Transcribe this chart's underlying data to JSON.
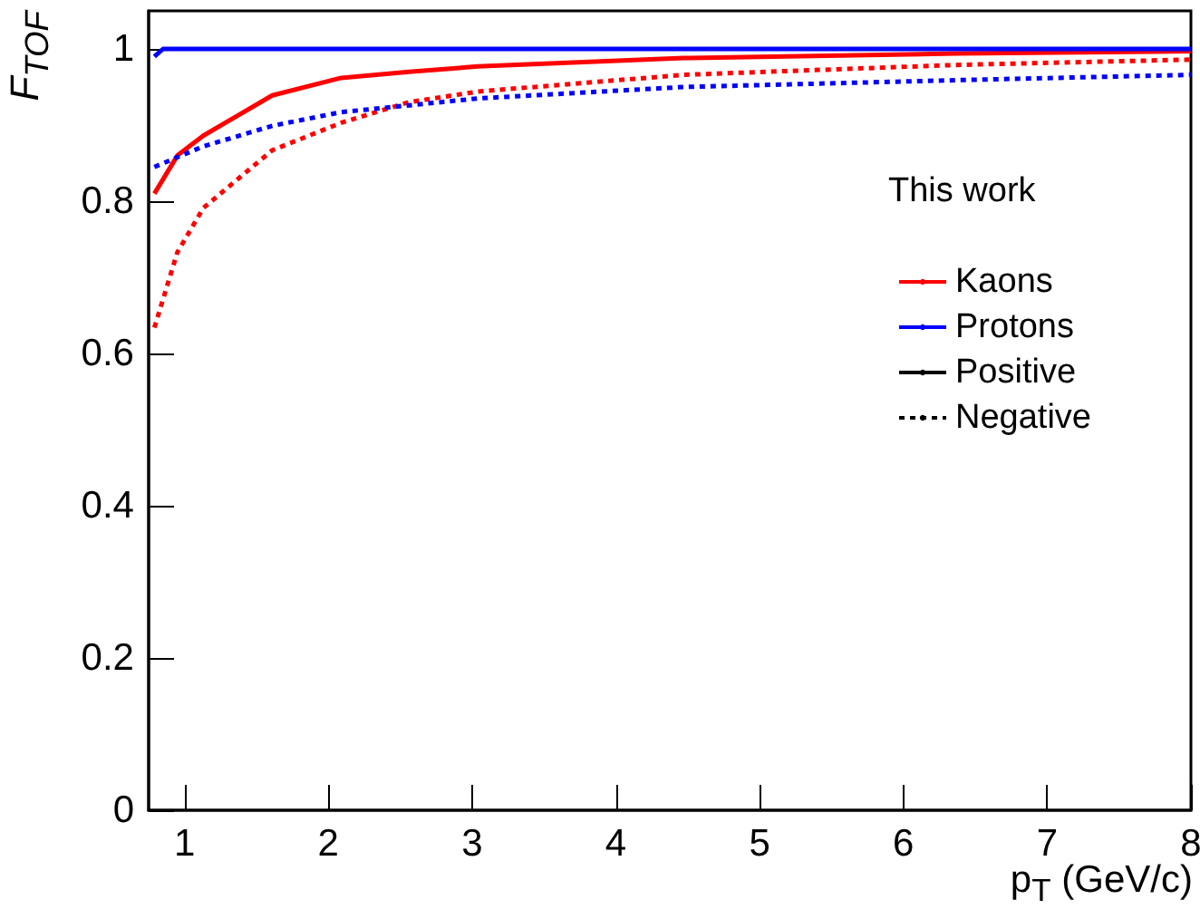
{
  "chart_data": {
    "type": "line",
    "xlabel": "p$_{T}$ (GeV/c)",
    "ylabel": "F$_{TOF}$",
    "legend_title": "This work",
    "legend": "top right",
    "grid": false,
    "marker": "none",
    "xlim": [
      0.75,
      8
    ],
    "ylim": [
      0,
      1.05
    ],
    "xticks": [
      1,
      2,
      3,
      4,
      5,
      6,
      7,
      8
    ],
    "yticks": [
      0,
      0.2,
      0.4,
      0.6,
      0.8,
      1
    ],
    "series": [
      {
        "name": "Kaons",
        "color": "#ff0000",
        "line_style": "solid",
        "x": [
          0.79,
          0.95,
          1.13,
          1.61,
          2.09,
          2.56,
          3.04,
          4.47,
          6.37,
          8
        ],
        "values": [
          0.81,
          0.86,
          0.886,
          0.939,
          0.962,
          0.97,
          0.977,
          0.988,
          0.994,
          0.997
        ]
      },
      {
        "name": "Protons",
        "color": "#0000ff",
        "line_style": "solid",
        "x": [
          0.79,
          0.85,
          1,
          2,
          4,
          6,
          8
        ],
        "values": [
          0.99,
          1,
          1,
          1,
          1,
          1,
          1
        ]
      },
      {
        "color": "#ff0000",
        "line_style": "dotted",
        "x": [
          0.79,
          0.95,
          1.13,
          1.61,
          2.09,
          2.56,
          3.04,
          4.47,
          6.37,
          8
        ],
        "values": [
          0.634,
          0.733,
          0.791,
          0.867,
          0.903,
          0.93,
          0.944,
          0.966,
          0.979,
          0.986
        ]
      },
      {
        "color": "#0000ff",
        "line_style": "dotted",
        "x": [
          0.79,
          1.13,
          1.61,
          2.09,
          3.04,
          4.47,
          6.37,
          8
        ],
        "values": [
          0.845,
          0.872,
          0.899,
          0.917,
          0.935,
          0.95,
          0.959,
          0.966
        ]
      },
      {
        "name": "Positive",
        "color": "#000000",
        "line_style": "solid"
      },
      {
        "name": "Negative",
        "color": "#000000",
        "line_style": "dotted"
      }
    ]
  }
}
